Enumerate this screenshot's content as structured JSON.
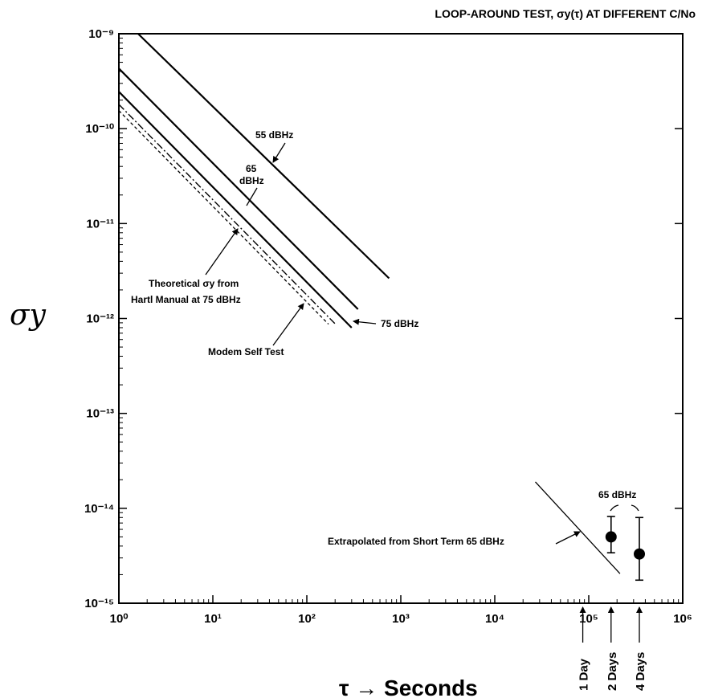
{
  "chart_data": {
    "type": "line",
    "title": "LOOP-AROUND TEST, σy(τ) AT DIFFERENT C/No",
    "ylabel": "σy",
    "xlabel": "τ → Seconds",
    "xscale": "log",
    "yscale": "log",
    "xlim": [
      1,
      1000000
    ],
    "ylim": [
      1e-15,
      1e-09
    ],
    "x_tick_labels": [
      "10⁰",
      "10¹",
      "10²",
      "10³",
      "10⁴",
      "10⁵",
      "10⁶"
    ],
    "y_tick_labels": [
      "10⁻¹⁵",
      "10⁻¹⁴",
      "10⁻¹³",
      "10⁻¹²",
      "10⁻¹¹",
      "10⁻¹⁰",
      "10⁻⁹"
    ],
    "grid": false,
    "series": [
      {
        "name": "55 dBHz",
        "style": "solid",
        "x": [
          1.6,
          750
        ],
        "y": [
          1e-09,
          2.65e-12
        ]
      },
      {
        "name": "65 dBHz",
        "style": "solid",
        "x": [
          1.0,
          350
        ],
        "y": [
          4.3e-10,
          1.25e-12
        ]
      },
      {
        "name": "75 dBHz",
        "style": "solid",
        "x": [
          1.0,
          300
        ],
        "y": [
          2.45e-10,
          8e-13
        ]
      },
      {
        "name": "Theoretical σy from Hartl Manual at 75 dBHz",
        "style": "dash-dot",
        "x": [
          1.0,
          200
        ],
        "y": [
          1.8e-10,
          8.8e-13
        ]
      },
      {
        "name": "Modem Self Test",
        "style": "dashed",
        "x": [
          1.0,
          170
        ],
        "y": [
          1.55e-10,
          8.7e-13
        ]
      },
      {
        "name": "Extrapolated from Short Term 65 dBHz",
        "style": "solid-thin",
        "x": [
          27000,
          215000
        ],
        "y": [
          1.9e-14,
          2.05e-15
        ]
      }
    ],
    "error_points": {
      "name": "65 dBHz",
      "points": [
        {
          "x": 172800,
          "y": 5e-15,
          "ylow": 3.4e-15,
          "yhigh": 8.2e-15
        },
        {
          "x": 345600,
          "y": 3.3e-15,
          "ylow": 1.75e-15,
          "yhigh": 8e-15
        }
      ]
    },
    "annotations": {
      "db55": "55 dBHz",
      "db65_line1": "65",
      "db65_line2": "dBHz",
      "db75": "75 dBHz",
      "theo_line1": "Theoretical σy from",
      "theo_line2": "Hartl Manual at 75 dBHz",
      "modem": "Modem Self Test",
      "extrap": "Extrapolated from Short Term 65 dBHz",
      "pts65": "65 dBHz"
    },
    "time_markers": [
      {
        "label": "1 Day",
        "x": 86400
      },
      {
        "label": "2 Days",
        "x": 172800
      },
      {
        "label": "4 Days",
        "x": 345600
      }
    ]
  }
}
